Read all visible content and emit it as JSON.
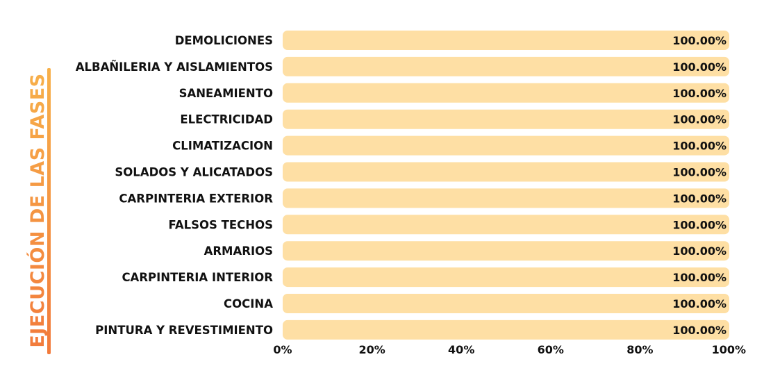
{
  "side_title": "EJECUCIÓN DE LAS FASES",
  "colors": {
    "accent_start": "#f7b04a",
    "accent_end": "#f27a3b",
    "bar_fill": "#fedfa4",
    "text": "#111111"
  },
  "chart_data": {
    "type": "bar",
    "orientation": "horizontal",
    "title": "EJECUCIÓN DE LAS FASES",
    "categories": [
      "DEMOLICIONES",
      "ALBAÑILERIA Y AISLAMIENTOS",
      "SANEAMIENTO",
      "ELECTRICIDAD",
      "CLIMATIZACION",
      "SOLADOS Y ALICATADOS",
      "CARPINTERIA EXTERIOR",
      "FALSOS TECHOS",
      "ARMARIOS",
      "CARPINTERIA INTERIOR",
      "COCINA",
      "PINTURA Y REVESTIMIENTO"
    ],
    "values": [
      100,
      100,
      100,
      100,
      100,
      100,
      100,
      100,
      100,
      100,
      100,
      100
    ],
    "data_labels": [
      "100.00%",
      "100.00%",
      "100.00%",
      "100.00%",
      "100.00%",
      "100.00%",
      "100.00%",
      "100.00%",
      "100.00%",
      "100.00%",
      "100.00%",
      "100.00%"
    ],
    "x_ticks": [
      "0%",
      "20%",
      "40%",
      "60%",
      "80%",
      "100%"
    ],
    "xlim": [
      0,
      100
    ],
    "xlabel": "",
    "ylabel": "EJECUCIÓN DE LAS FASES",
    "grid": false,
    "legend": "none"
  }
}
